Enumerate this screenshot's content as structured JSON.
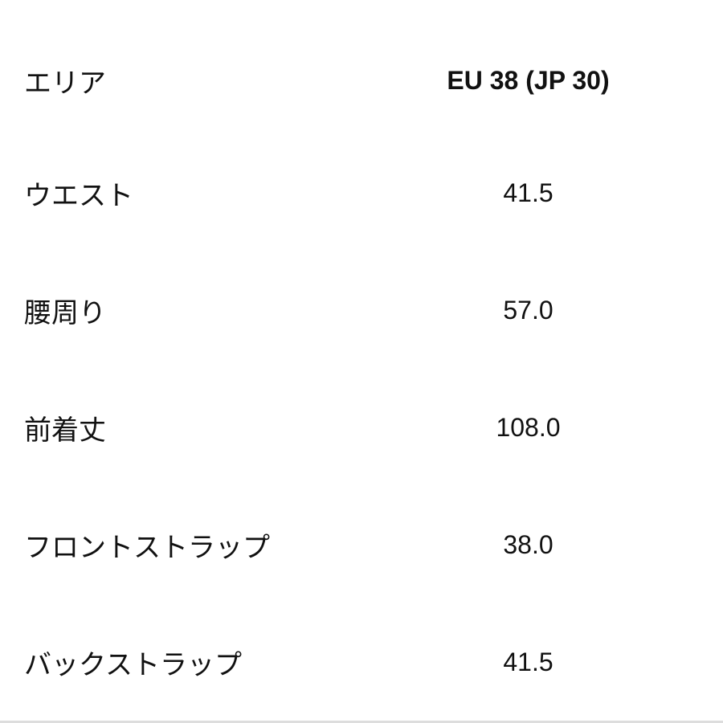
{
  "table": {
    "header": {
      "area": "エリア",
      "size": "EU 38 (JP 30)"
    },
    "rows": [
      {
        "area": "ウエスト",
        "value": "41.5"
      },
      {
        "area": "腰周り",
        "value": "57.0"
      },
      {
        "area": "前着丈",
        "value": "108.0"
      },
      {
        "area": "フロントストラップ",
        "value": "38.0"
      },
      {
        "area": "バックストラップ",
        "value": "41.5"
      }
    ]
  }
}
